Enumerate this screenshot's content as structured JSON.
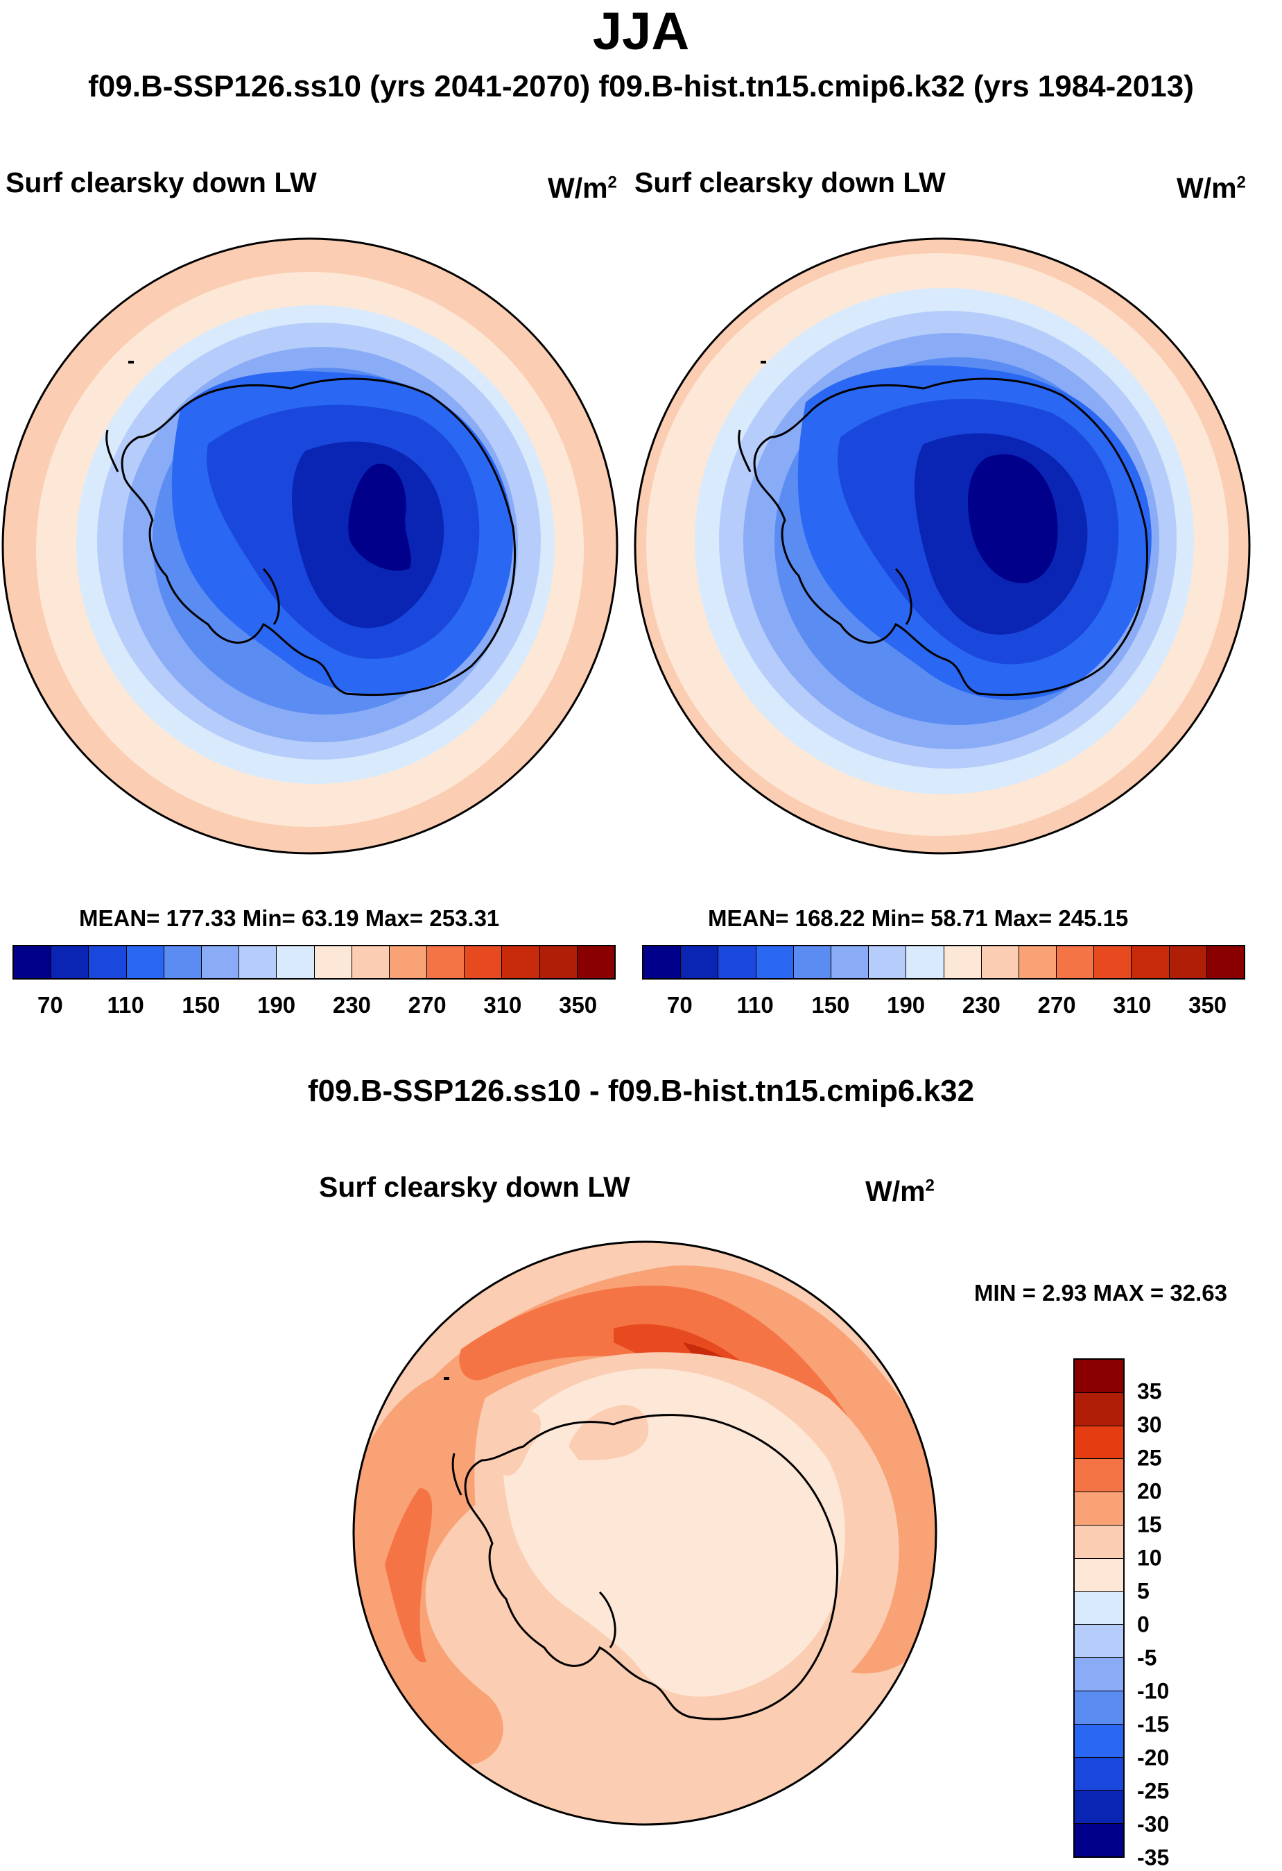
{
  "season": "JJA",
  "runs_title": "f09.B-SSP126.ss10 (yrs 2041-2070)  f09.B-hist.tn15.cmip6.k32 (yrs 1984-2013)",
  "panel_left": {
    "variable": "Surf clearsky down LW",
    "units_base": "W/m",
    "units_exp": "2",
    "stats": "MEAN= 177.33  Min=  63.19  Max= 253.31"
  },
  "panel_right": {
    "variable": "Surf clearsky down LW",
    "units_base": "W/m",
    "units_exp": "2",
    "stats": "MEAN= 168.22  Min=  58.71  Max= 245.15"
  },
  "abs_colorbar": {
    "colors": [
      "#00008a",
      "#0a24b4",
      "#1a48dc",
      "#2a68f4",
      "#5a8cf2",
      "#8aacf6",
      "#b6ccfa",
      "#d8eafc",
      "#fde8d8",
      "#fbcdb2",
      "#f8a276",
      "#f47446",
      "#e64a1e",
      "#c82a0c",
      "#b01e08",
      "#8a0000"
    ],
    "tick_labels": [
      "70",
      "110",
      "150",
      "190",
      "230",
      "270",
      "310",
      "350"
    ]
  },
  "diff_title": "f09.B-SSP126.ss10 - f09.B-hist.tn15.cmip6.k32",
  "panel_diff": {
    "variable": "Surf clearsky down LW",
    "units_base": "W/m",
    "units_exp": "2",
    "minmax": "MIN =   2.93 MAX =  32.63"
  },
  "diff_colorbar": {
    "colors": [
      "#8a0000",
      "#b01e08",
      "#e63c12",
      "#f47446",
      "#f8a276",
      "#fbcdb2",
      "#fde8d8",
      "#d8eafc",
      "#b6ccfa",
      "#8aacf6",
      "#5a8cf2",
      "#2a68f4",
      "#1a48dc",
      "#0a24b4",
      "#00008a"
    ],
    "tick_labels": [
      "35",
      "30",
      "25",
      "20",
      "15",
      "10",
      "5",
      "0",
      "-5",
      "-10",
      "-15",
      "-20",
      "-25",
      "-30",
      "-35"
    ]
  }
}
